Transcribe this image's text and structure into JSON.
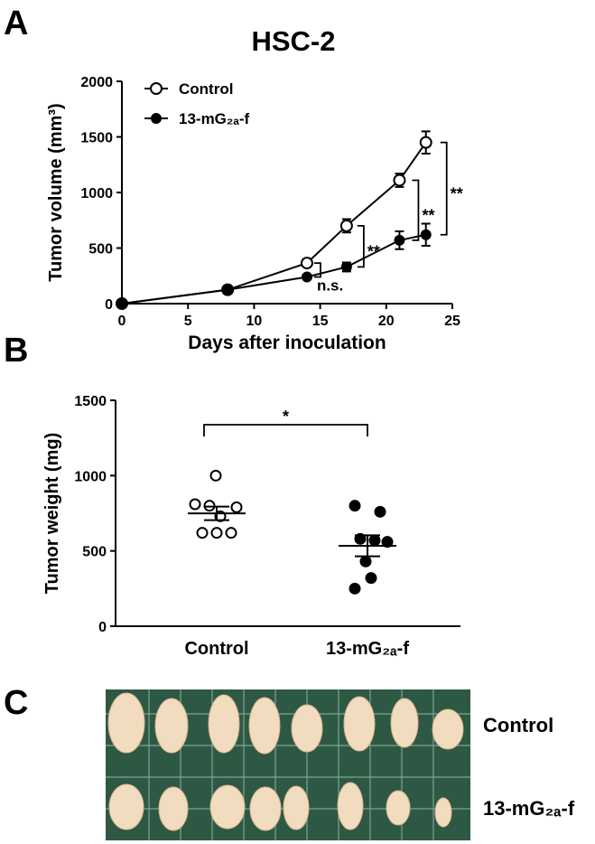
{
  "panel_labels": [
    "A",
    "B",
    "C"
  ],
  "chart_data": [
    {
      "type": "line",
      "title": "HSC-2",
      "xlabel": "Days after inoculation",
      "ylabel": "Tumor volume (mm³)",
      "x": [
        0,
        8,
        14,
        17,
        21,
        23
      ],
      "series": [
        {
          "name": "Control",
          "color": "#000000",
          "fill": "#ffffff",
          "values": [
            0,
            125,
            365,
            700,
            1110,
            1450
          ],
          "errors": [
            0,
            0,
            20,
            60,
            60,
            100
          ]
        },
        {
          "name": "13-mG₂ₐ-f",
          "color": "#000000",
          "fill": "#000000",
          "values": [
            0,
            125,
            240,
            330,
            570,
            620
          ],
          "errors": [
            0,
            0,
            15,
            40,
            80,
            100
          ]
        }
      ],
      "xlim": [
        0,
        25
      ],
      "xticks": [
        0,
        5,
        10,
        15,
        20,
        25
      ],
      "ylim": [
        0,
        2000
      ],
      "yticks": [
        0,
        500,
        1000,
        1500,
        2000
      ],
      "legend": "upper-left",
      "annotations": [
        "n.s.",
        "**",
        "**",
        "**"
      ]
    },
    {
      "type": "dot",
      "ylabel": "Tumor weight (mg)",
      "groups": [
        {
          "name": "Control",
          "color": "#000000",
          "fill": "#ffffff",
          "values": [
            1000,
            810,
            800,
            790,
            730,
            620,
            620,
            620
          ],
          "mean": 749,
          "sem": 45
        },
        {
          "name": "13-mG₂ₐ-f",
          "color": "#000000",
          "fill": "#000000",
          "values": [
            800,
            760,
            580,
            570,
            560,
            430,
            320,
            250
          ],
          "mean": 534,
          "sem": 70
        }
      ],
      "ylim": [
        0,
        1500
      ],
      "yticks": [
        0,
        500,
        1000,
        1500
      ],
      "significance": "*"
    }
  ],
  "photo": {
    "row_labels": [
      "Control",
      "13-mG₂ₐ-f"
    ]
  }
}
